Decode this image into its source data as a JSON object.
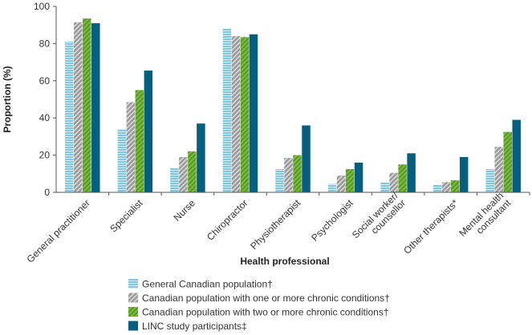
{
  "chart_data": {
    "type": "bar",
    "title": "",
    "xlabel": "Health professional",
    "ylabel": "Proportion (%)",
    "ylim": [
      0,
      100
    ],
    "yticks": [
      0,
      20,
      40,
      60,
      80,
      100
    ],
    "grid": false,
    "legend_position": "bottom",
    "categories": [
      "General practitioner",
      "Specialist",
      "Nurse",
      "Chiropractor",
      "Physiotherapist",
      "Psychologist",
      "Social worker/\ncounsellor",
      "Other therapists*",
      "Mental health\nconsultant"
    ],
    "series": [
      {
        "name": "General Canadian population†",
        "color": "#7fc6e3",
        "pattern": "horizontal-stripes",
        "values": [
          81,
          34,
          13,
          88,
          12.5,
          4.5,
          5.5,
          4,
          12.5
        ]
      },
      {
        "name": "Canadian population with one or more chronic conditions†",
        "color": "#9a9a9a",
        "pattern": "diagonal-stripes",
        "values": [
          91.5,
          48.5,
          19,
          84,
          18.5,
          9,
          10.5,
          5.5,
          24.5
        ]
      },
      {
        "name": "Canadian population with two or more chronic conditions†",
        "color": "#78b83a",
        "pattern": "diagonal-stripes",
        "values": [
          93.5,
          55,
          22,
          83.5,
          20,
          12.5,
          15,
          6.5,
          32.5
        ]
      },
      {
        "name": "LINC study participants‡",
        "color": "#075f80",
        "pattern": "solid",
        "values": [
          91,
          65.5,
          37,
          85,
          36,
          16,
          21,
          19,
          39
        ]
      }
    ]
  }
}
